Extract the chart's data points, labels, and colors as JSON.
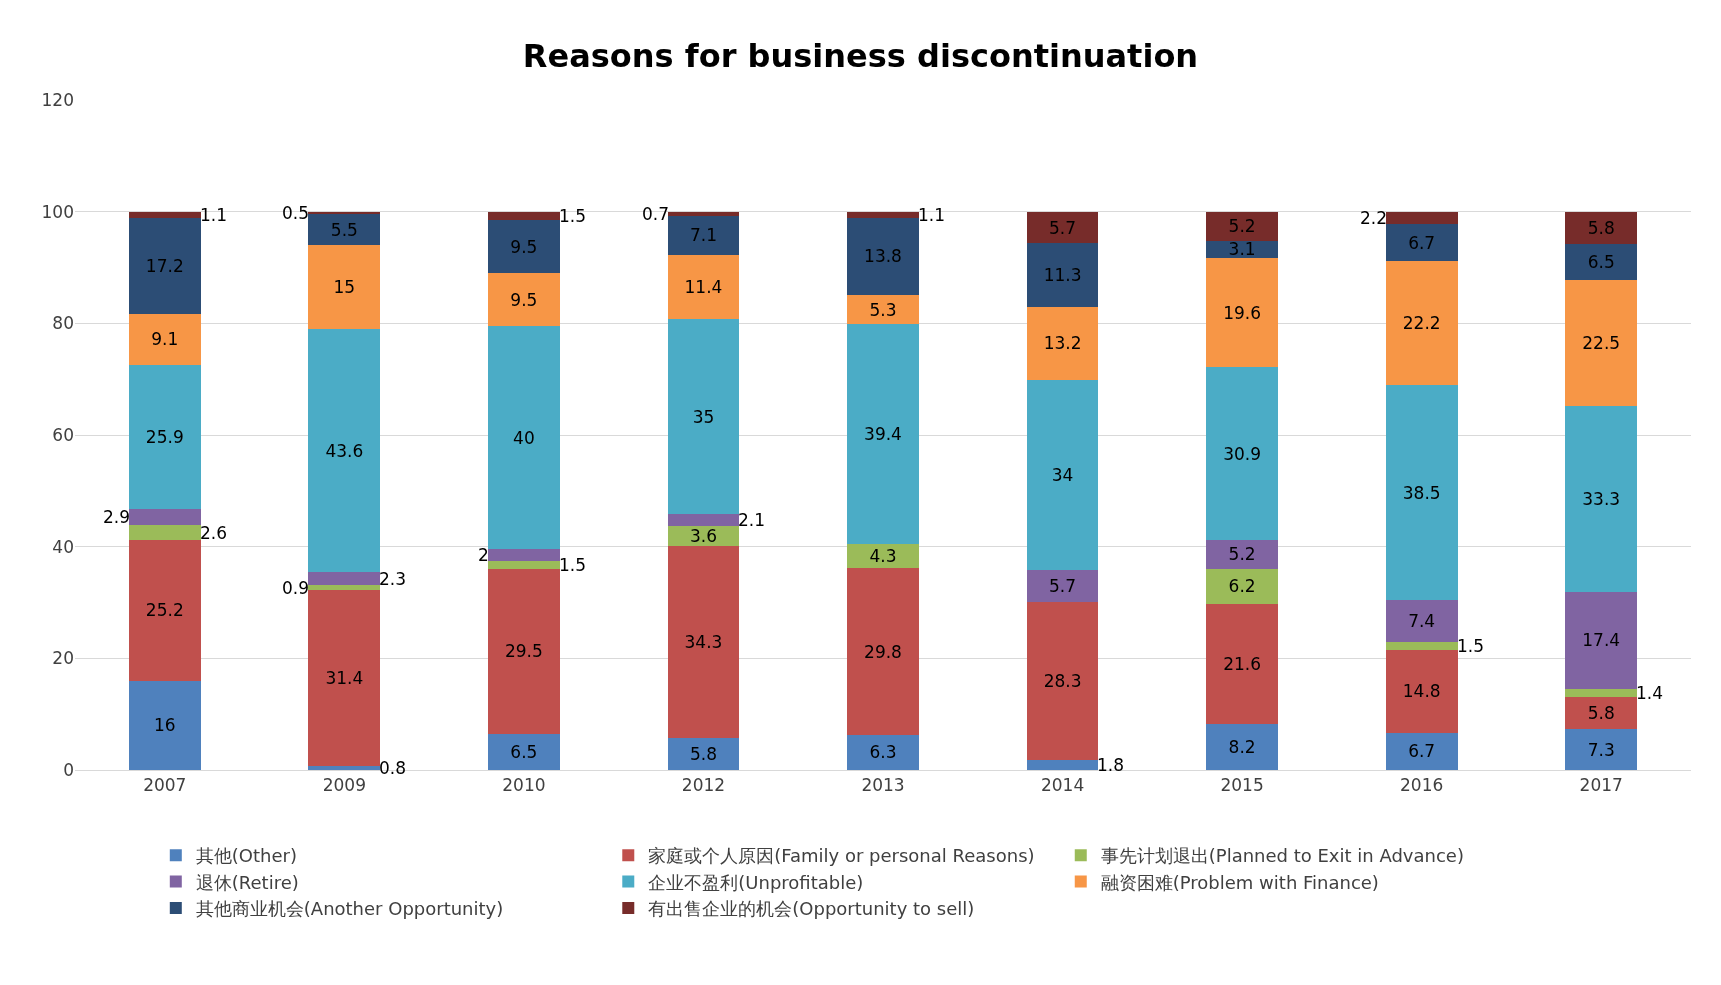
{
  "chart_data": {
    "type": "bar",
    "title": "Reasons for business discontinuation",
    "stacked": true,
    "data_labels": true,
    "grid": "y",
    "legend": "bottom",
    "categories": [
      "2007",
      "2009",
      "2010",
      "2012",
      "2013",
      "2014",
      "2015",
      "2016",
      "2017"
    ],
    "ylim": [
      0,
      120
    ],
    "yticks": [
      0,
      20,
      40,
      60,
      80,
      100,
      120
    ],
    "series": [
      {
        "name": "其他(Other)",
        "color": "#4f81bd",
        "values": [
          16,
          0.8,
          6.5,
          5.8,
          6.3,
          1.8,
          8.2,
          6.7,
          7.3
        ]
      },
      {
        "name": "家庭或个人原因(Family or personal Reasons)",
        "color": "#c0504d",
        "values": [
          25.2,
          31.4,
          29.5,
          34.3,
          29.8,
          28.3,
          21.6,
          14.8,
          5.8
        ]
      },
      {
        "name": "事先计划退出(Planned to Exit in Advance)",
        "color": "#9bbb59",
        "values": [
          2.6,
          0.9,
          1.5,
          3.6,
          4.3,
          null,
          6.2,
          1.5,
          1.4
        ]
      },
      {
        "name": "退休(Retire)",
        "color": "#8064a2",
        "values": [
          2.9,
          2.3,
          2,
          2.1,
          null,
          5.7,
          5.2,
          7.4,
          17.4
        ]
      },
      {
        "name": "企业不盈利(Unprofitable)",
        "color": "#4bacc6",
        "values": [
          25.9,
          43.6,
          40,
          35,
          39.4,
          34,
          30.9,
          38.5,
          33.3
        ]
      },
      {
        "name": "融资困难(Problem with Finance)",
        "color": "#f79646",
        "values": [
          9.1,
          15,
          9.5,
          11.4,
          5.3,
          13.2,
          19.6,
          22.2,
          22.5
        ]
      },
      {
        "name": "其他商业机会(Another Opportunity)",
        "color": "#2c4d75",
        "values": [
          17.2,
          5.5,
          9.5,
          7.1,
          13.8,
          11.3,
          3.1,
          6.7,
          6.5
        ]
      },
      {
        "name": "有出售企业的机会(Opportunity to sell)",
        "color": "#772c2a",
        "values": [
          1.1,
          0.5,
          1.5,
          0.7,
          1.1,
          5.7,
          5.2,
          2.2,
          5.8
        ]
      }
    ]
  }
}
